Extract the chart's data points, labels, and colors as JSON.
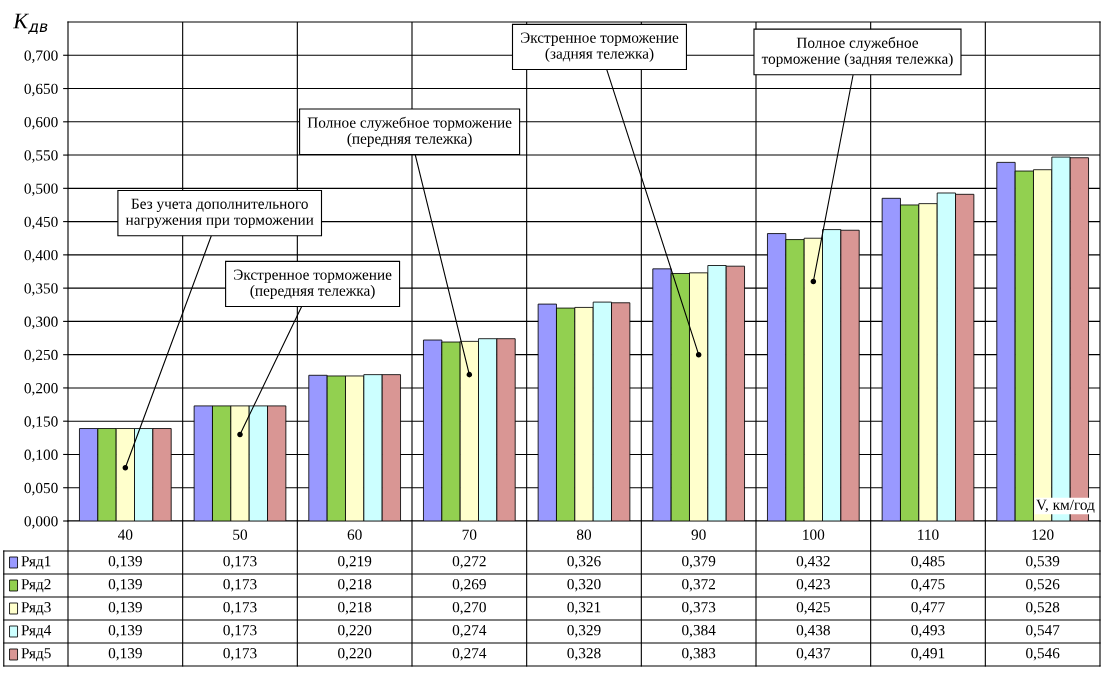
{
  "chart_data": {
    "type": "bar",
    "ylabel": "K$_{дв}$",
    "xlabel": "V, км/год",
    "categories": [
      "40",
      "50",
      "60",
      "70",
      "80",
      "90",
      "100",
      "110",
      "120"
    ],
    "series": [
      {
        "name": "Ряд1",
        "color": "#9999ff",
        "values": [
          0.139,
          0.173,
          0.219,
          0.272,
          0.326,
          0.379,
          0.432,
          0.485,
          0.539
        ],
        "value_labels": [
          "0,139",
          "0,173",
          "0,219",
          "0,272",
          "0,326",
          "0,379",
          "0,432",
          "0,485",
          "0,539"
        ]
      },
      {
        "name": "Ряд2",
        "color": "#92d050",
        "values": [
          0.139,
          0.173,
          0.218,
          0.269,
          0.32,
          0.372,
          0.423,
          0.475,
          0.526
        ],
        "value_labels": [
          "0,139",
          "0,173",
          "0,218",
          "0,269",
          "0,320",
          "0,372",
          "0,423",
          "0,475",
          "0,526"
        ]
      },
      {
        "name": "Ряд3",
        "color": "#ffffcc",
        "values": [
          0.139,
          0.173,
          0.218,
          0.27,
          0.321,
          0.373,
          0.425,
          0.477,
          0.528
        ],
        "value_labels": [
          "0,139",
          "0,173",
          "0,218",
          "0,270",
          "0,321",
          "0,373",
          "0,425",
          "0,477",
          "0,528"
        ]
      },
      {
        "name": "Ряд4",
        "color": "#ccffff",
        "values": [
          0.139,
          0.173,
          0.22,
          0.274,
          0.329,
          0.384,
          0.438,
          0.493,
          0.547
        ],
        "value_labels": [
          "0,139",
          "0,173",
          "0,220",
          "0,274",
          "0,329",
          "0,384",
          "0,438",
          "0,493",
          "0,547"
        ]
      },
      {
        "name": "Ряд5",
        "color": "#d99694",
        "values": [
          0.139,
          0.173,
          0.22,
          0.274,
          0.328,
          0.383,
          0.437,
          0.491,
          0.546
        ],
        "value_labels": [
          "0,139",
          "0,173",
          "0,220",
          "0,274",
          "0,328",
          "0,383",
          "0,437",
          "0,491",
          "0,546"
        ]
      }
    ],
    "ylim": [
      0,
      0.75
    ],
    "yticks": [
      {
        "value": 0,
        "label": "0,000"
      },
      {
        "value": 0.05,
        "label": "0,050"
      },
      {
        "value": 0.1,
        "label": "0,100"
      },
      {
        "value": 0.15,
        "label": "0,150"
      },
      {
        "value": 0.2,
        "label": "0,200"
      },
      {
        "value": 0.25,
        "label": "0,250"
      },
      {
        "value": 0.3,
        "label": "0,300"
      },
      {
        "value": 0.35,
        "label": "0,350"
      },
      {
        "value": 0.4,
        "label": "0,400"
      },
      {
        "value": 0.45,
        "label": "0,450"
      },
      {
        "value": 0.5,
        "label": "0,500"
      },
      {
        "value": 0.55,
        "label": "0,550"
      },
      {
        "value": 0.6,
        "label": "0,600"
      },
      {
        "value": 0.65,
        "label": "0,650"
      },
      {
        "value": 0.7,
        "label": "0,700"
      }
    ],
    "grid": true,
    "legend": "bottom left",
    "annotations": [
      {
        "text": "Без учета дополнительного\nнагружения при торможении",
        "x": "40",
        "y": 0.08
      },
      {
        "text": "Экстренное торможение\n(передняя тележка)",
        "x": "50",
        "y": 0.13
      },
      {
        "text": "Полное служебное торможение\n(передняя тележка)",
        "x": "70",
        "y": 0.22
      },
      {
        "text": "Экстренное торможение\n(задняя тележка)",
        "x": "90",
        "y": 0.25
      },
      {
        "text": "Полное служебное\nторможение (задняя тележка)",
        "x": "100",
        "y": 0.36
      }
    ]
  }
}
